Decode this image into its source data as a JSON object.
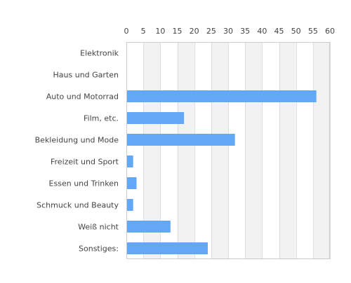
{
  "chart_data": {
    "type": "bar",
    "orientation": "horizontal",
    "categories": [
      "Elektronik",
      "Haus und Garten",
      "Auto und Motorrad",
      "Film, etc.",
      "Bekleidung und Mode",
      "Freizeit und Sport",
      "Essen und Trinken",
      "Schmuck und Beauty",
      "Weiß nicht",
      "Sonstiges:"
    ],
    "values": [
      0,
      0,
      56,
      17,
      32,
      2,
      3,
      2,
      13,
      24
    ],
    "xlim": [
      0,
      60
    ],
    "xticks": [
      0,
      5,
      10,
      15,
      20,
      25,
      30,
      35,
      40,
      45,
      50,
      55,
      60
    ],
    "tick_position": "top",
    "grid": "alternating vertical bands",
    "legend": "none",
    "colors": {
      "bar": "#63a7f7",
      "band_alt": "#f2f2f2",
      "band_base": "#ffffff",
      "gridline": "#dddddd",
      "axis": "#cccccc",
      "text": "#444444"
    }
  }
}
